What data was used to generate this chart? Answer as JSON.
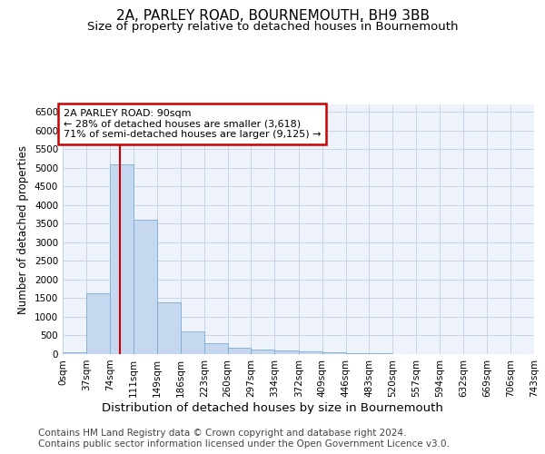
{
  "title_line1": "2A, PARLEY ROAD, BOURNEMOUTH, BH9 3BB",
  "title_line2": "Size of property relative to detached houses in Bournemouth",
  "xlabel": "Distribution of detached houses by size in Bournemouth",
  "ylabel": "Number of detached properties",
  "footer_line1": "Contains HM Land Registry data © Crown copyright and database right 2024.",
  "footer_line2": "Contains public sector information licensed under the Open Government Licence v3.0.",
  "annotation_line1": "2A PARLEY ROAD: 90sqm",
  "annotation_line2": "← 28% of detached houses are smaller (3,618)",
  "annotation_line3": "71% of semi-detached houses are larger (9,125) →",
  "bin_edges": [
    0,
    37,
    74,
    111,
    149,
    186,
    223,
    260,
    297,
    334,
    372,
    409,
    446,
    483,
    520,
    557,
    594,
    632,
    669,
    706,
    743
  ],
  "bar_heights": [
    60,
    1640,
    5080,
    3600,
    1400,
    600,
    300,
    160,
    130,
    100,
    80,
    50,
    30,
    15,
    10,
    8,
    5,
    3,
    2,
    1
  ],
  "bar_color": "#c5d8ef",
  "bar_edge_color": "#7aadd4",
  "grid_color": "#c8d4e8",
  "vline_color": "#cc0000",
  "vline_x": 90,
  "annotation_box_color": "#cc0000",
  "ylim": [
    0,
    6700
  ],
  "yticks": [
    0,
    500,
    1000,
    1500,
    2000,
    2500,
    3000,
    3500,
    4000,
    4500,
    5000,
    5500,
    6000,
    6500
  ],
  "bg_color": "#eef2fa",
  "title_fontsize": 11,
  "subtitle_fontsize": 9.5,
  "ylabel_fontsize": 8.5,
  "xlabel_fontsize": 9.5,
  "tick_fontsize": 7.5,
  "annotation_fontsize": 8,
  "footer_fontsize": 7.5
}
